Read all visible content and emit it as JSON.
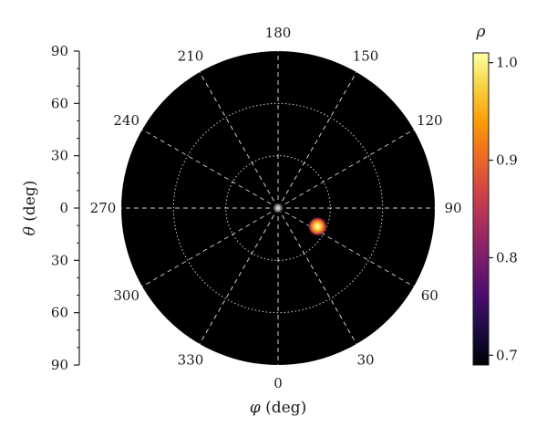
{
  "chart_data": {
    "type": "heatmap",
    "projection": "polar",
    "title": "",
    "theta_axis": {
      "label_symbol": "θ",
      "label_unit": " (deg)",
      "ticks": [
        "90",
        "60",
        "30",
        "0",
        "30",
        "60",
        "90"
      ],
      "range": [
        0,
        90
      ]
    },
    "phi_axis": {
      "label_symbol": "φ",
      "label_unit": " (deg)",
      "angle_labels": [
        {
          "deg": 0,
          "label": "0"
        },
        {
          "deg": 30,
          "label": "30"
        },
        {
          "deg": 60,
          "label": "60"
        },
        {
          "deg": 90,
          "label": "90"
        },
        {
          "deg": 120,
          "label": "120"
        },
        {
          "deg": 150,
          "label": "150"
        },
        {
          "deg": 180,
          "label": "180"
        },
        {
          "deg": 210,
          "label": "210"
        },
        {
          "deg": 240,
          "label": "240"
        },
        {
          "deg": 270,
          "label": "270"
        },
        {
          "deg": 300,
          "label": "300"
        },
        {
          "deg": 330,
          "label": "330"
        }
      ]
    },
    "radial_grid_theta": [
      30,
      60
    ],
    "peak": {
      "theta": 25,
      "phi": 65,
      "value": 1.0
    },
    "colorbar": {
      "label": "ρ",
      "min": 0.69,
      "max": 1.01,
      "ticks": [
        "0.7",
        "0.8",
        "0.9",
        "1.0"
      ],
      "tick_values": [
        0.7,
        0.8,
        0.9,
        1.0
      ],
      "colormap": "inferno",
      "colors": [
        "#000004",
        "#1b0c41",
        "#4a0c6b",
        "#781c6d",
        "#a52c60",
        "#cf4446",
        "#ed6925",
        "#fb9b06",
        "#f7d13d",
        "#fcffa4"
      ]
    },
    "background_value_color": "#000000",
    "grid_color": "#cfcfcf"
  }
}
